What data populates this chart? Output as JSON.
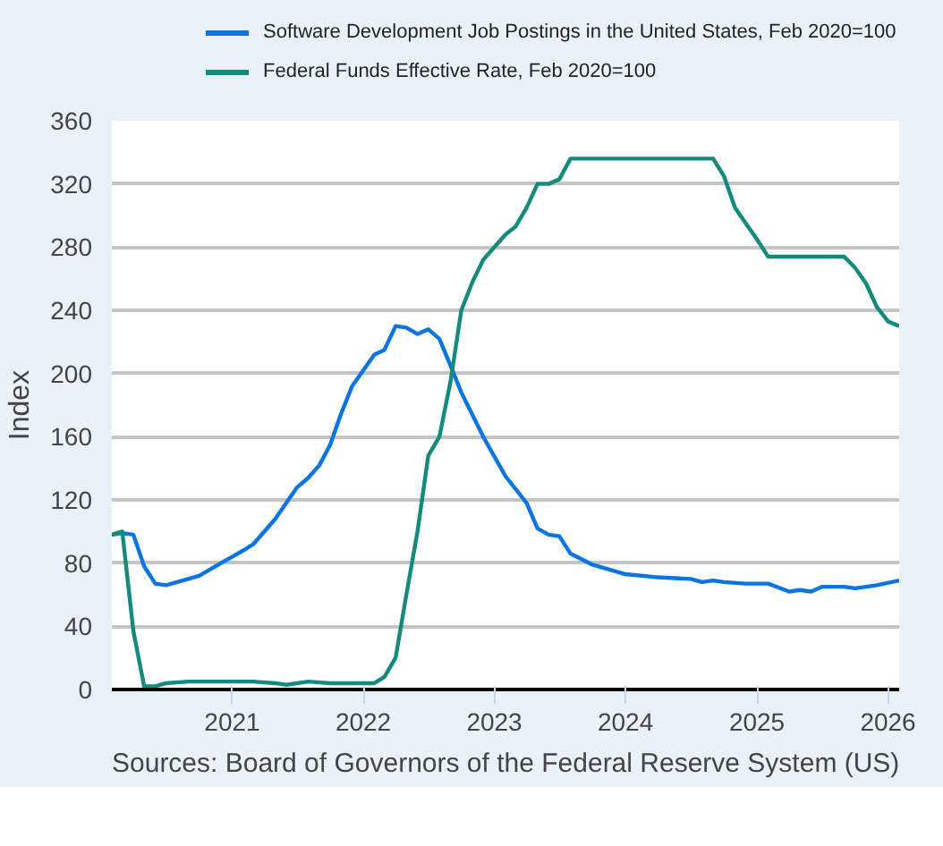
{
  "chart_data": {
    "type": "line",
    "ylabel": "Index",
    "legend": "top",
    "grid": "y",
    "xlim": [
      "2020-02",
      "2026-02"
    ],
    "xticks": [
      "2021",
      "2022",
      "2023",
      "2024",
      "2025",
      "2026"
    ],
    "ylim": [
      0,
      360
    ],
    "yticks": [
      0,
      40,
      80,
      120,
      160,
      200,
      240,
      280,
      320,
      360
    ],
    "annotations": [
      "Sources: Board of Governors of the Federal Reserve System (US)"
    ],
    "series": [
      {
        "name": "Software Development Job Postings in the United States, Feb 2020=100",
        "color": "#0a74e0",
        "x": [
          "2020-02",
          "2020-03",
          "2020-04",
          "2020-05",
          "2020-06",
          "2020-07",
          "2020-08",
          "2020-10",
          "2020-12",
          "2021-02",
          "2021-03",
          "2021-05",
          "2021-07",
          "2021-08",
          "2021-09",
          "2021-10",
          "2021-11",
          "2021-12",
          "2022-02",
          "2022-03",
          "2022-04",
          "2022-05",
          "2022-06",
          "2022-07",
          "2022-08",
          "2022-09",
          "2022-10",
          "2022-12",
          "2023-02",
          "2023-04",
          "2023-05",
          "2023-06",
          "2023-07",
          "2023-08",
          "2023-10",
          "2024-01",
          "2024-04",
          "2024-07",
          "2024-08",
          "2024-09",
          "2024-10",
          "2024-12",
          "2025-02",
          "2025-04",
          "2025-05",
          "2025-06",
          "2025-07",
          "2025-09",
          "2025-10",
          "2025-12",
          "2026-02"
        ],
        "values": [
          98,
          99,
          98,
          78,
          67,
          66,
          68,
          72,
          80,
          88,
          92,
          108,
          128,
          134,
          142,
          155,
          175,
          192,
          212,
          215,
          230,
          229,
          225,
          228,
          222,
          205,
          188,
          160,
          135,
          118,
          102,
          98,
          97,
          86,
          79,
          73,
          71,
          70,
          68,
          69,
          68,
          67,
          67,
          62,
          63,
          62,
          65,
          65,
          64,
          66,
          69
        ]
      },
      {
        "name": "Federal Funds Effective Rate, Feb 2020=100",
        "color": "#138a7b",
        "x": [
          "2020-02",
          "2020-03",
          "2020-04",
          "2020-05",
          "2020-06",
          "2020-07",
          "2020-09",
          "2020-12",
          "2021-03",
          "2021-05",
          "2021-06",
          "2021-08",
          "2021-10",
          "2022-02",
          "2022-03",
          "2022-04",
          "2022-05",
          "2022-06",
          "2022-07",
          "2022-08",
          "2022-09",
          "2022-10",
          "2022-11",
          "2022-12",
          "2023-02",
          "2023-03",
          "2023-04",
          "2023-05",
          "2023-06",
          "2023-07",
          "2023-08",
          "2024-09",
          "2024-10",
          "2024-11",
          "2024-12",
          "2025-01",
          "2025-02",
          "2025-09",
          "2025-10",
          "2025-11",
          "2025-12",
          "2026-01",
          "2026-02"
        ],
        "values": [
          98,
          100,
          37,
          2,
          2,
          4,
          5,
          5,
          5,
          4,
          3,
          5,
          4,
          4,
          8,
          20,
          60,
          100,
          148,
          160,
          195,
          240,
          258,
          272,
          288,
          293,
          305,
          320,
          320,
          323,
          336,
          336,
          325,
          305,
          295,
          285,
          274,
          274,
          267,
          257,
          242,
          233,
          230
        ]
      }
    ]
  }
}
